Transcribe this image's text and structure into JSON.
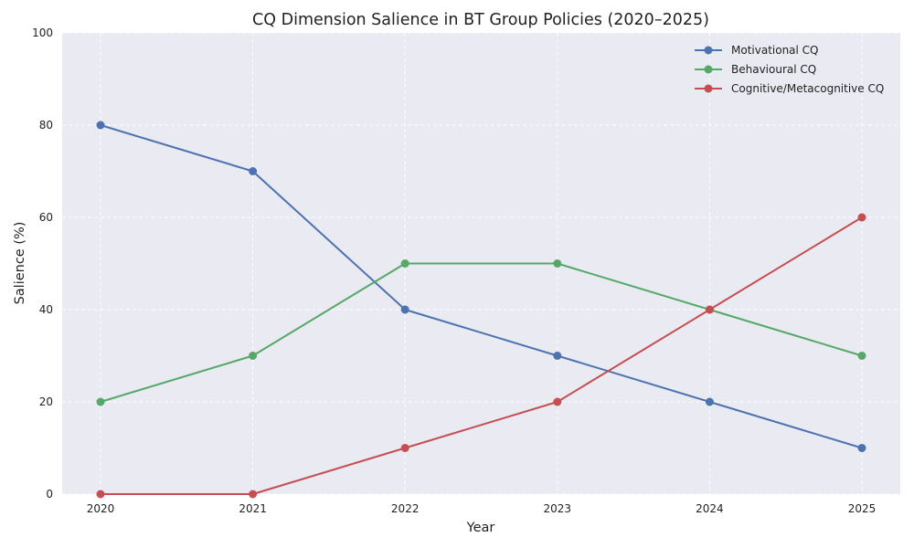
{
  "chart_data": {
    "type": "line",
    "title": "CQ Dimension Salience in BT Group Policies (2020–2025)",
    "xlabel": "Year",
    "ylabel": "Salience (%)",
    "x": [
      "2020",
      "2021",
      "2022",
      "2023",
      "2024",
      "2025"
    ],
    "ylim": [
      0,
      100
    ],
    "yticks": [
      "0",
      "20",
      "40",
      "60",
      "80",
      "100"
    ],
    "grid": true,
    "legend_position": "top-right",
    "series": [
      {
        "name": "Motivational CQ",
        "color": "#4c72b0",
        "values": [
          80,
          70,
          40,
          30,
          20,
          10
        ]
      },
      {
        "name": "Behavioural CQ",
        "color": "#55a868",
        "values": [
          20,
          30,
          50,
          50,
          40,
          30
        ]
      },
      {
        "name": "Cognitive/Metacognitive CQ",
        "color": "#c44e52",
        "values": [
          0,
          0,
          10,
          20,
          40,
          60
        ]
      }
    ],
    "background_color": "#eaeaf2"
  }
}
